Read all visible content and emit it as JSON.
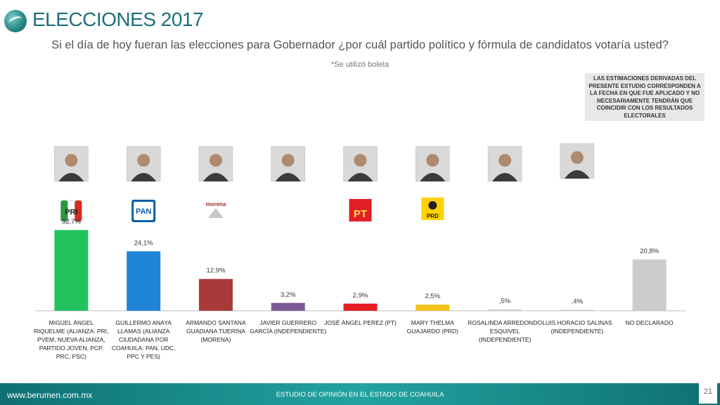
{
  "header": {
    "title": "ELECCIONES 2017",
    "subtitle": "Si el día de hoy fueran las elecciones para Gobernador ¿por cuál partido político y fórmula de candidatos votaría usted?",
    "note": "*Se utilizó boleta"
  },
  "disclaimer": "LAS ESTIMACIONES DERIVADAS DEL PRESENTE ESTUDIO CORRESPONDEN A LA FECHA EN QUE FUE APLICADO Y NO NECESARIAMENTE TENDRÁN QUE COINCIDIR CON LOS RESULTADOS ELECTORALES",
  "footer": {
    "url": "www.berumen.com.mx",
    "study": "ESTUDIO DE OPINIÓN EN EL ESTADO DE COAHUILA",
    "page": "21"
  },
  "chart_data": {
    "type": "bar",
    "categories": [
      "MIGUEL ÁNGEL RIQUELME (ALIANZA: PRI, PVEM, NUEVA ALIANZA, PARTIDO JOVEN, PCP, PRC, PSC)",
      "GUILLERMO ANAYA LLAMAS (ALIANZA CIUDADANA POR COAHUILA: PAN, UDC, PPC Y PES)",
      "ARMANDO SANTANA GUADIANA TIJERINA (MORENA)",
      "JAVIER GUERRERO GARCÍA (INDEPENDIENTE)",
      "JOSÉ ÁNGEL PEREZ (PT)",
      "MARY THELMA GUAJARDO (PRD)",
      "ROSALINDA ARREDONDO ESQUIVEL (INDEPENDIENTE)",
      "LUIS HORACIO SALINAS (INDEPENDIENTE)",
      "NO DECLARADO"
    ],
    "category_lines": [
      [
        "MIGUEL ÁNGEL",
        "RIQUELME (ALIANZA: PRI,",
        "PVEM, NUEVA ALIANZA,",
        "PARTIDO JOVEN, PCP,",
        "PRC, PSC)"
      ],
      [
        "GUILLERMO ANAYA",
        "LLAMAS (ALIANZA",
        "CIUDADANA POR",
        "COAHUILA: PAN, UDC,",
        "PPC Y PES)"
      ],
      [
        "ARMANDO SANTANA",
        "GUADIANA TIJERINA",
        "(MORENA)"
      ],
      [
        "JAVIER GUERRERO",
        "GARCÍA (INDEPENDIENTE)"
      ],
      [
        "JOSÉ ÁNGEL PEREZ (PT)"
      ],
      [
        "MARY THELMA",
        "GUAJARDO (PRD)"
      ],
      [
        "ROSALINDA ARREDONDO",
        "ESQUIVEL",
        "(INDEPENDIENTE)"
      ],
      [
        "LUIS HORACIO SALINAS",
        "(INDEPENDIENTE)"
      ],
      [
        "NO DECLARADO"
      ]
    ],
    "values": [
      32.7,
      24.1,
      12.9,
      3.2,
      2.9,
      2.5,
      0.5,
      0.4,
      20.8
    ],
    "value_labels": [
      "32,7%",
      "24,1%",
      "12,9%",
      "3,2%",
      "2,9%",
      "2,5%",
      ",5%",
      ",4%",
      "20,8%"
    ],
    "colors": [
      "#22c35e",
      "#1f83d6",
      "#a83a3a",
      "#7a5a94",
      "#e21e25",
      "#f3c21b",
      "#cccccc",
      "#cccccc",
      "#cccccc"
    ],
    "party_logos": [
      "PRI",
      "PAN",
      "morena",
      "",
      "PT",
      "PRD",
      "",
      "",
      ""
    ],
    "ylim": [
      0,
      35
    ],
    "grid": false,
    "legend": "none"
  }
}
